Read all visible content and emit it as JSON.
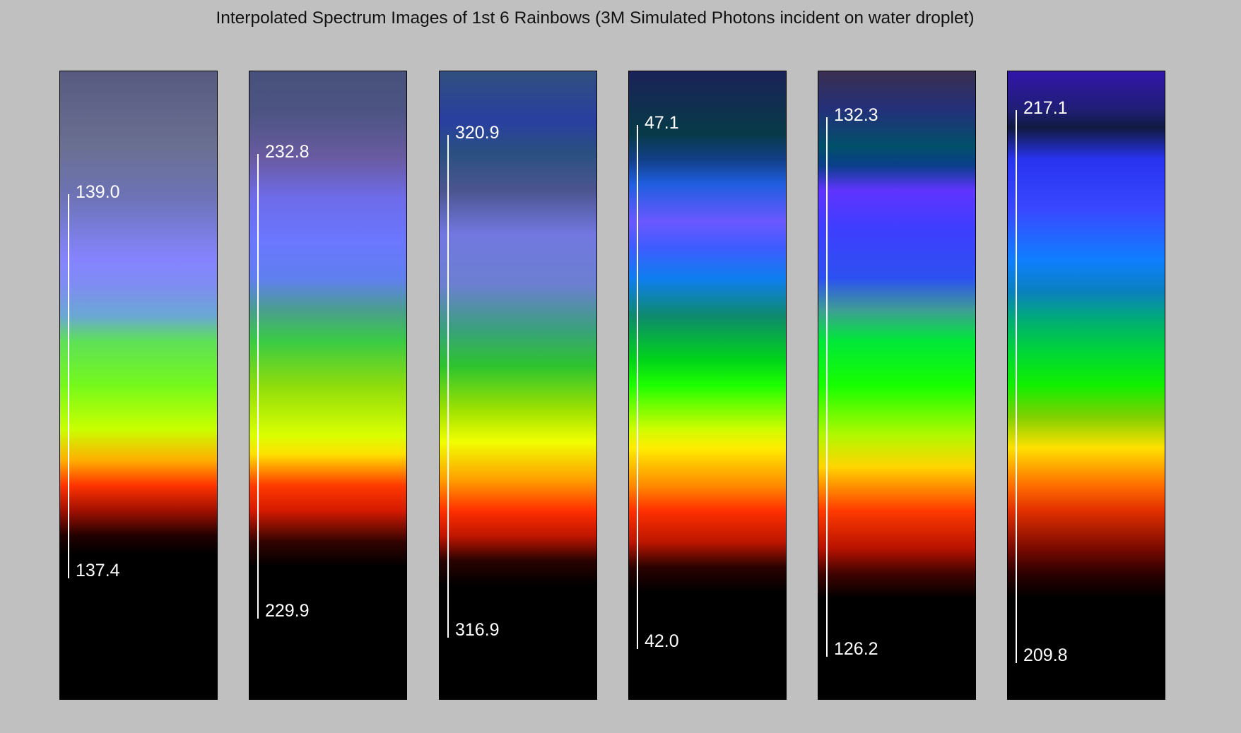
{
  "title": "Interpolated Spectrum Images of 1st 6 Rainbows (3M Simulated Photons incident on water droplet)",
  "rainbows": [
    {
      "top_angle": "139.0",
      "bottom_angle": "137.4",
      "top_fraction": 0.195,
      "bottom_fraction": 0.806,
      "gradient": [
        [
          "#585a80",
          0.0
        ],
        [
          "#6a7092",
          0.12
        ],
        [
          "#6d73b5",
          0.2
        ],
        [
          "#8584ff",
          0.3
        ],
        [
          "#7f8cf3",
          0.34
        ],
        [
          "#6aa8d3",
          0.39
        ],
        [
          "#5ee058",
          0.43
        ],
        [
          "#75f91b",
          0.5
        ],
        [
          "#c9ff00",
          0.57
        ],
        [
          "#ffae00",
          0.62
        ],
        [
          "#ff3300",
          0.66
        ],
        [
          "#a01000",
          0.7
        ],
        [
          "#200000",
          0.74
        ],
        [
          "#000000",
          0.77
        ],
        [
          "#000000",
          1.0
        ]
      ]
    },
    {
      "top_angle": "232.8",
      "bottom_angle": "229.9",
      "top_fraction": 0.131,
      "bottom_fraction": 0.87,
      "gradient": [
        [
          "#47507a",
          0.0
        ],
        [
          "#4e5585",
          0.07
        ],
        [
          "#6a5ba2",
          0.14
        ],
        [
          "#6e6be8",
          0.2
        ],
        [
          "#6a77ff",
          0.27
        ],
        [
          "#607fef",
          0.33
        ],
        [
          "#4a9e8f",
          0.38
        ],
        [
          "#3acb45",
          0.43
        ],
        [
          "#8ddc0c",
          0.5
        ],
        [
          "#daff00",
          0.58
        ],
        [
          "#ffe000",
          0.61
        ],
        [
          "#ff3a00",
          0.66
        ],
        [
          "#d41a00",
          0.7
        ],
        [
          "#300300",
          0.75
        ],
        [
          "#000000",
          0.79
        ],
        [
          "#000000",
          1.0
        ]
      ]
    },
    {
      "top_angle": "320.9",
      "bottom_angle": "316.9",
      "top_fraction": 0.101,
      "bottom_fraction": 0.9,
      "gradient": [
        [
          "#314f7f",
          0.0
        ],
        [
          "#293fa0",
          0.08
        ],
        [
          "#2a5080",
          0.13
        ],
        [
          "#4b5590",
          0.19
        ],
        [
          "#7278e0",
          0.26
        ],
        [
          "#6c7fd0",
          0.34
        ],
        [
          "#3aa07e",
          0.41
        ],
        [
          "#2dc42e",
          0.47
        ],
        [
          "#9fe200",
          0.54
        ],
        [
          "#f0ff00",
          0.59
        ],
        [
          "#ffa000",
          0.65
        ],
        [
          "#ff2f00",
          0.7
        ],
        [
          "#c01600",
          0.74
        ],
        [
          "#280200",
          0.78
        ],
        [
          "#000000",
          0.82
        ],
        [
          "#000000",
          1.0
        ]
      ]
    },
    {
      "top_angle": "47.1",
      "bottom_angle": "42.0",
      "top_fraction": 0.085,
      "bottom_fraction": 0.918,
      "gradient": [
        [
          "#1a2258",
          0.0
        ],
        [
          "#073a48",
          0.1
        ],
        [
          "#123f88",
          0.14
        ],
        [
          "#1f5ee0",
          0.18
        ],
        [
          "#6a58ff",
          0.24
        ],
        [
          "#3e5cff",
          0.28
        ],
        [
          "#0e7ef0",
          0.33
        ],
        [
          "#0e8a6c",
          0.39
        ],
        [
          "#00d41a",
          0.46
        ],
        [
          "#1dff00",
          0.5
        ],
        [
          "#cffc00",
          0.57
        ],
        [
          "#ffed00",
          0.6
        ],
        [
          "#ff8a00",
          0.66
        ],
        [
          "#ff2f00",
          0.7
        ],
        [
          "#bc1600",
          0.75
        ],
        [
          "#2a0200",
          0.79
        ],
        [
          "#000000",
          0.83
        ],
        [
          "#000000",
          1.0
        ]
      ]
    },
    {
      "top_angle": "132.3",
      "bottom_angle": "126.2",
      "top_fraction": 0.073,
      "bottom_fraction": 0.93,
      "gradient": [
        [
          "#3a2f4f",
          0.0
        ],
        [
          "#24307a",
          0.06
        ],
        [
          "#01506a",
          0.12
        ],
        [
          "#0a3f8a",
          0.15
        ],
        [
          "#6033ff",
          0.19
        ],
        [
          "#3e3eff",
          0.25
        ],
        [
          "#2c51f0",
          0.33
        ],
        [
          "#3f9d95",
          0.38
        ],
        [
          "#00e838",
          0.43
        ],
        [
          "#16ff00",
          0.5
        ],
        [
          "#b2f800",
          0.58
        ],
        [
          "#ffd500",
          0.63
        ],
        [
          "#ff3a00",
          0.7
        ],
        [
          "#b81200",
          0.76
        ],
        [
          "#400300",
          0.8
        ],
        [
          "#000000",
          0.84
        ],
        [
          "#000000",
          1.0
        ]
      ]
    },
    {
      "top_angle": "217.1",
      "bottom_angle": "209.8",
      "top_fraction": 0.062,
      "bottom_fraction": 0.94,
      "gradient": [
        [
          "#3215a8",
          0.0
        ],
        [
          "#201e77",
          0.06
        ],
        [
          "#101a40",
          0.09
        ],
        [
          "#2833f0",
          0.14
        ],
        [
          "#3948ff",
          0.22
        ],
        [
          "#0f7fff",
          0.3
        ],
        [
          "#0a80c0",
          0.35
        ],
        [
          "#00b070",
          0.4
        ],
        [
          "#00d834",
          0.45
        ],
        [
          "#10f000",
          0.5
        ],
        [
          "#7fd000",
          0.55
        ],
        [
          "#ffe000",
          0.6
        ],
        [
          "#ff6d00",
          0.66
        ],
        [
          "#e23000",
          0.7
        ],
        [
          "#7a0a00",
          0.76
        ],
        [
          "#2c0000",
          0.8
        ],
        [
          "#000000",
          0.84
        ],
        [
          "#000000",
          1.0
        ]
      ]
    }
  ]
}
